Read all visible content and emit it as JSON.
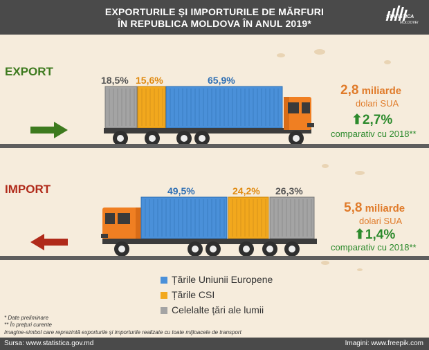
{
  "header": {
    "title_line1": "EXPORTURILE ȘI IMPORTURILE DE MĂRFURI",
    "title_line2": "ÎN REPUBLICA MOLDOVA ÎN ANUL 2019*",
    "logo_line1": "STATISTICA",
    "logo_line2": "MOLDOVEI"
  },
  "export": {
    "label": "EXPORT",
    "shares": {
      "other": "18,5%",
      "cis": "15,6%",
      "eu": "65,9%"
    },
    "amount": "2,8",
    "amount_unit": "miliarde",
    "currency": "dolari SUA",
    "growth": "2,7%",
    "comparison": "comparativ cu 2018**"
  },
  "import": {
    "label": "IMPORT",
    "shares": {
      "eu": "49,5%",
      "cis": "24,2%",
      "other": "26,3%"
    },
    "amount": "5,8",
    "amount_unit": "miliarde",
    "currency": "dolari SUA",
    "growth": "1,4%",
    "comparison": "comparativ cu 2018**"
  },
  "legend": [
    {
      "label": "Țările Uniunii Europene",
      "color": "#4a90d9"
    },
    {
      "label": "Țările CSI",
      "color": "#f2a81d"
    },
    {
      "label": "Celelalte țări ale lumii",
      "color": "#a4a4a4"
    }
  ],
  "notes": {
    "n1": "* Date preliminare",
    "n2": "** În prețuri curente",
    "n3": "Imagine-simbol care reprezintă exporturile și importurile realizate cu toate mijloacele de transport"
  },
  "footer": {
    "source": "Sursa: www.statistica.gov.md",
    "images": "Imagini: www.freepik.com"
  },
  "colors": {
    "eu": "#4a90d9",
    "cis": "#f2a81d",
    "other": "#a4a4a4",
    "cab": "#f07f22",
    "export_label": "#3d7a1e",
    "import_label": "#b02a1a",
    "growth": "#2c8a2c"
  }
}
